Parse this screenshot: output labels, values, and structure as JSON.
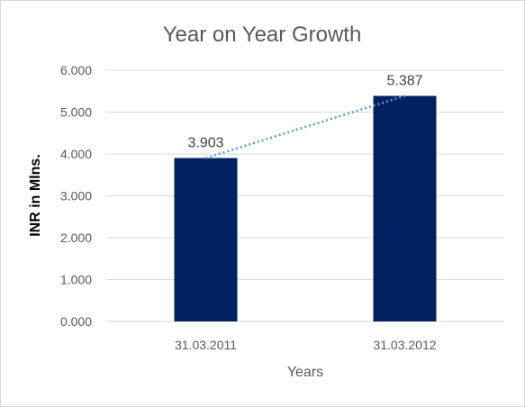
{
  "chart_data": {
    "type": "bar",
    "title": "Year on Year Growth",
    "xlabel": "Years",
    "ylabel": "INR in Mlns.",
    "categories": [
      "31.03.2011",
      "31.03.2012"
    ],
    "values": [
      3.903,
      5.387
    ],
    "value_labels": [
      "3.903",
      "5.387"
    ],
    "yticks": [
      "0.000",
      "1.000",
      "2.000",
      "3.000",
      "4.000",
      "5.000",
      "6.000"
    ],
    "ylim": [
      0,
      6
    ],
    "grid": true,
    "trendline": "linear, dotted",
    "colors": {
      "bar": "#002060",
      "trendline": "#5b9bd5",
      "grid": "#d9d9d9"
    }
  }
}
